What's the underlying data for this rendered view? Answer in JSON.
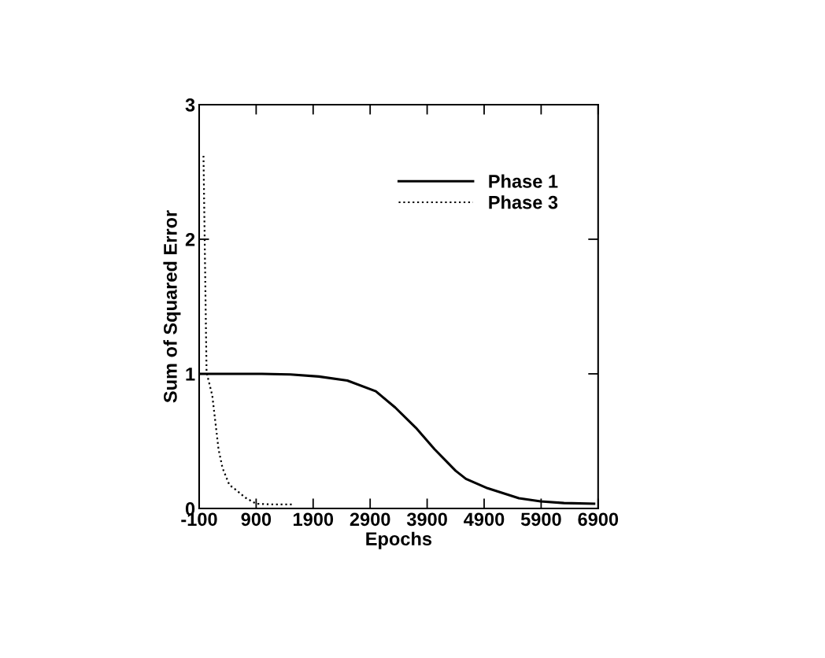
{
  "chart_data": {
    "type": "line",
    "xlabel": "Epochs",
    "ylabel": "Sum of Squared Error",
    "xlim": [
      -100,
      6900
    ],
    "xticks": [
      -100,
      900,
      1900,
      2900,
      3900,
      4900,
      5900,
      6900
    ],
    "ylim": [
      0,
      3
    ],
    "yticks": [
      0,
      1,
      2,
      3
    ],
    "grid": false,
    "legend": "top",
    "marker": "none",
    "series": [
      {
        "name": "Phase 1",
        "color": "#000000",
        "line_style": "solid",
        "x": [
          -100,
          500,
          1000,
          1500,
          2000,
          2500,
          3000,
          3340,
          3700,
          4030,
          4400,
          4580,
          4960,
          5510,
          5890,
          6300,
          6830
        ],
        "values": [
          1.0,
          1.0,
          1.0,
          0.995,
          0.98,
          0.95,
          0.87,
          0.75,
          0.6,
          0.44,
          0.28,
          0.22,
          0.15,
          0.076,
          0.053,
          0.04,
          0.035
        ]
      },
      {
        "name": "Phase 3",
        "color": "#000000",
        "line_style": "dotted",
        "x": [
          -24,
          30,
          130,
          240,
          310,
          430,
          540,
          710,
          900,
          1200,
          1530
        ],
        "values": [
          2.62,
          1.01,
          0.84,
          0.44,
          0.3,
          0.175,
          0.14,
          0.08,
          0.035,
          0.03,
          0.03
        ]
      }
    ]
  }
}
